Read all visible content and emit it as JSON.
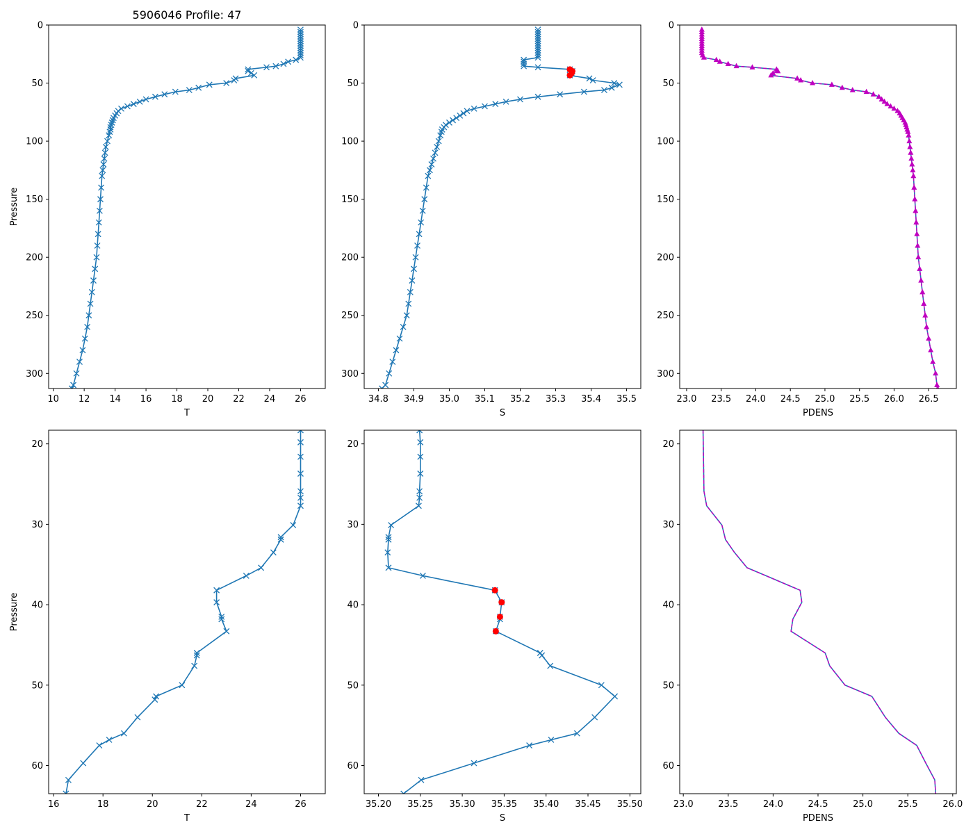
{
  "figure_title": "5906046 Profile: 47",
  "colors": {
    "line": "#1f77b4",
    "density": "#c000c0",
    "flag": "#ff0000"
  },
  "chart_data": [
    {
      "id": "top-temperature",
      "type": "line",
      "title": "5906046 Profile: 47",
      "xlabel": "T",
      "ylabel": "Pressure",
      "xlim": [
        9.7,
        27.6
      ],
      "ylim": [
        313,
        0
      ],
      "y_inverted": true,
      "xticks": [
        10,
        12,
        14,
        16,
        18,
        20,
        22,
        24,
        26
      ],
      "yticks": [
        0,
        50,
        100,
        150,
        200,
        250,
        300
      ],
      "marker": "x",
      "series": [
        {
          "name": "T",
          "pressure": [
            4,
            6,
            8,
            10,
            12,
            14,
            16,
            18,
            20,
            22,
            24,
            26,
            28,
            30,
            31.6,
            33.5,
            35.4,
            36.4,
            38.2,
            39.7,
            41.5,
            43.3,
            46,
            47.6,
            50,
            51.4,
            54,
            56,
            57.5,
            59.7,
            61.8,
            64,
            66,
            68,
            70,
            72,
            74,
            76,
            78,
            80,
            82,
            84,
            86,
            88,
            90,
            92,
            95,
            100,
            105,
            110,
            115,
            120,
            125,
            130,
            140,
            150,
            160,
            170,
            180,
            190,
            200,
            210,
            220,
            230,
            240,
            250,
            260,
            270,
            280,
            290,
            300,
            310,
            313
          ],
          "values": [
            26,
            26,
            26,
            26,
            26,
            26,
            26,
            26,
            26,
            26,
            26,
            26,
            26,
            25.7,
            25.2,
            24.9,
            24.4,
            23.8,
            22.6,
            22.6,
            22.8,
            23,
            21.8,
            21.7,
            21.2,
            20.1,
            19.4,
            18.8,
            17.9,
            17.2,
            16.6,
            16,
            15.6,
            15.2,
            14.8,
            14.4,
            14.2,
            14.1,
            14,
            13.9,
            13.85,
            13.8,
            13.75,
            13.7,
            13.7,
            13.65,
            13.6,
            13.5,
            13.4,
            13.35,
            13.3,
            13.25,
            13.2,
            13.15,
            13.1,
            13.05,
            13,
            12.95,
            12.9,
            12.85,
            12.8,
            12.7,
            12.6,
            12.5,
            12.4,
            12.3,
            12.2,
            12.05,
            11.9,
            11.7,
            11.5,
            11.3,
            11.2
          ]
        }
      ]
    },
    {
      "id": "top-salinity",
      "type": "line",
      "xlabel": "S",
      "ylabel": "",
      "xlim": [
        34.76,
        35.54
      ],
      "ylim": [
        313,
        0
      ],
      "y_inverted": true,
      "xticks": [
        34.8,
        34.9,
        35.0,
        35.1,
        35.2,
        35.3,
        35.4,
        35.5
      ],
      "yticks": [
        0,
        50,
        100,
        150,
        200,
        250,
        300
      ],
      "marker": "x",
      "series": [
        {
          "name": "S",
          "pressure": [
            4,
            6,
            8,
            10,
            12,
            14,
            16,
            18,
            20,
            22,
            24,
            26,
            28,
            30,
            31.6,
            33.5,
            35.4,
            36.4,
            38.2,
            39.7,
            41.5,
            43.3,
            46,
            47.6,
            50,
            51.4,
            54,
            56,
            57.5,
            59.7,
            61.8,
            64,
            66,
            68,
            70,
            72,
            74,
            76,
            78,
            80,
            82,
            84,
            86,
            88,
            90,
            92,
            95,
            100,
            105,
            110,
            115,
            120,
            125,
            130,
            140,
            150,
            160,
            170,
            180,
            190,
            200,
            210,
            220,
            230,
            240,
            250,
            260,
            270,
            280,
            290,
            300,
            310,
            313
          ],
          "values": [
            35.25,
            35.25,
            35.25,
            35.25,
            35.25,
            35.25,
            35.25,
            35.25,
            35.25,
            35.25,
            35.25,
            35.25,
            35.25,
            35.21,
            35.21,
            35.21,
            35.21,
            35.25,
            35.34,
            35.347,
            35.345,
            35.34,
            35.395,
            35.405,
            35.465,
            35.48,
            35.458,
            35.437,
            35.38,
            35.312,
            35.25,
            35.2,
            35.16,
            35.13,
            35.1,
            35.07,
            35.05,
            35.04,
            35.03,
            35.02,
            35.01,
            35.0,
            34.99,
            34.985,
            34.98,
            34.978,
            34.975,
            34.97,
            34.965,
            34.96,
            34.955,
            34.95,
            34.945,
            34.94,
            34.935,
            34.93,
            34.925,
            34.92,
            34.915,
            34.91,
            34.905,
            34.9,
            34.895,
            34.89,
            34.885,
            34.88,
            34.87,
            34.86,
            34.85,
            34.84,
            34.83,
            34.82,
            34.81
          ]
        }
      ],
      "flagged_points": {
        "pressure": [
          38.2,
          39.7,
          41.5,
          43.3
        ],
        "values": [
          35.34,
          35.347,
          35.345,
          35.34
        ]
      }
    },
    {
      "id": "top-density",
      "type": "line",
      "xlabel": "PDENS",
      "ylabel": "",
      "xlim": [
        22.9,
        26.9
      ],
      "ylim": [
        313,
        0
      ],
      "y_inverted": true,
      "xticks": [
        23.0,
        23.5,
        24.0,
        24.5,
        25.0,
        25.5,
        26.0,
        26.5
      ],
      "yticks": [
        0,
        50,
        100,
        150,
        200,
        250,
        300
      ],
      "marker": "triangle",
      "series": [
        {
          "name": "PDENS",
          "pressure": [
            4,
            6,
            8,
            10,
            12,
            14,
            16,
            18,
            20,
            22,
            24,
            26,
            28,
            30,
            31.6,
            33.5,
            35.4,
            36.4,
            38.2,
            39.7,
            41.5,
            43.3,
            46,
            47.6,
            50,
            51.4,
            54,
            56,
            57.5,
            59.7,
            61.8,
            64,
            66,
            68,
            70,
            72,
            74,
            76,
            78,
            80,
            82,
            84,
            86,
            88,
            90,
            92,
            95,
            100,
            105,
            110,
            115,
            120,
            125,
            130,
            140,
            150,
            160,
            170,
            180,
            190,
            200,
            210,
            220,
            230,
            240,
            250,
            260,
            270,
            280,
            290,
            300,
            310,
            313
          ],
          "values": [
            23.22,
            23.22,
            23.22,
            23.22,
            23.22,
            23.22,
            23.22,
            23.22,
            23.22,
            23.22,
            23.22,
            23.23,
            23.25,
            23.43,
            23.48,
            23.6,
            23.72,
            23.95,
            24.3,
            24.32,
            24.25,
            24.22,
            24.6,
            24.65,
            24.82,
            25.1,
            25.25,
            25.4,
            25.6,
            25.7,
            25.78,
            25.82,
            25.86,
            25.9,
            25.95,
            26.0,
            26.05,
            26.08,
            26.1,
            26.12,
            26.14,
            26.16,
            26.17,
            26.18,
            26.19,
            26.2,
            26.21,
            26.22,
            26.23,
            26.24,
            26.25,
            26.26,
            26.27,
            26.28,
            26.29,
            26.3,
            26.31,
            26.32,
            26.33,
            26.34,
            26.35,
            26.37,
            26.39,
            26.41,
            26.43,
            26.45,
            26.47,
            26.5,
            26.53,
            26.56,
            26.6,
            26.62,
            26.63
          ]
        }
      ]
    },
    {
      "id": "bottom-temperature",
      "type": "line",
      "xlabel": "T",
      "ylabel": "Pressure",
      "xlim": [
        15.8,
        27.0
      ],
      "ylim": [
        63.5,
        18.3
      ],
      "y_inverted": true,
      "xticks": [
        16,
        18,
        20,
        22,
        24,
        26
      ],
      "yticks": [
        20,
        30,
        40,
        50,
        60
      ],
      "marker": "x",
      "series": [
        {
          "name": "T",
          "pressure": [
            18.3,
            19.8,
            21.6,
            23.7,
            25.9,
            26.7,
            27.7,
            30.1,
            31.6,
            31.9,
            33.5,
            35.4,
            36.4,
            38.2,
            39.7,
            41.5,
            41.8,
            43.3,
            46,
            46.3,
            47.6,
            50,
            51.4,
            51.8,
            54,
            56,
            56.8,
            57.5,
            59.7,
            61.8,
            63.5
          ],
          "values": [
            26,
            26,
            26,
            26,
            26,
            26,
            26,
            25.7,
            25.2,
            25.2,
            24.9,
            24.4,
            23.8,
            22.6,
            22.6,
            22.8,
            22.8,
            23,
            21.8,
            21.8,
            21.7,
            21.2,
            20.15,
            20.1,
            19.4,
            18.85,
            18.25,
            17.85,
            17.2,
            16.6,
            16.5
          ]
        }
      ]
    },
    {
      "id": "bottom-salinity",
      "type": "line",
      "xlabel": "S",
      "ylabel": "",
      "xlim": [
        35.183,
        35.513
      ],
      "ylim": [
        63.5,
        18.3
      ],
      "y_inverted": true,
      "xticks": [
        35.2,
        35.25,
        35.3,
        35.35,
        35.4,
        35.45,
        35.5
      ],
      "yticks": [
        20,
        30,
        40,
        50,
        60
      ],
      "marker": "x",
      "series": [
        {
          "name": "S",
          "pressure": [
            18.3,
            19.8,
            21.6,
            23.7,
            25.9,
            26.7,
            27.7,
            30.1,
            31.6,
            31.9,
            33.5,
            35.4,
            36.4,
            38.2,
            39.7,
            41.5,
            41.8,
            43.3,
            46,
            46.3,
            47.6,
            50,
            51.4,
            54,
            56,
            56.8,
            57.5,
            59.7,
            61.8,
            63.5
          ],
          "values": [
            35.249,
            35.25,
            35.25,
            35.25,
            35.249,
            35.249,
            35.248,
            35.215,
            35.212,
            35.212,
            35.211,
            35.212,
            35.253,
            35.339,
            35.347,
            35.345,
            35.345,
            35.34,
            35.393,
            35.395,
            35.405,
            35.466,
            35.482,
            35.458,
            35.437,
            35.406,
            35.38,
            35.314,
            35.251,
            35.23
          ]
        }
      ],
      "flagged_points": {
        "pressure": [
          38.2,
          39.7,
          41.5,
          43.3
        ],
        "values": [
          35.339,
          35.347,
          35.345,
          35.34
        ]
      }
    },
    {
      "id": "bottom-density",
      "type": "line",
      "xlabel": "PDENS",
      "ylabel": "",
      "xlim": [
        22.96,
        26.04
      ],
      "ylim": [
        63.5,
        18.3
      ],
      "y_inverted": true,
      "xticks": [
        23.0,
        23.5,
        24.0,
        24.5,
        25.0,
        25.5,
        26.0
      ],
      "yticks": [
        20,
        30,
        40,
        50,
        60
      ],
      "marker": "none",
      "series": [
        {
          "name": "PDENS",
          "pressure": [
            18.3,
            25.9,
            27.7,
            30.1,
            31.9,
            33.5,
            35.4,
            36.4,
            38.2,
            39.7,
            41.8,
            43.3,
            46,
            47.6,
            50,
            51.4,
            54,
            56,
            57.5,
            59.7,
            61.8,
            63.5
          ],
          "values": [
            23.22,
            23.23,
            23.26,
            23.43,
            23.47,
            23.57,
            23.71,
            23.92,
            24.3,
            24.32,
            24.22,
            24.2,
            24.58,
            24.63,
            24.8,
            25.1,
            25.25,
            25.4,
            25.6,
            25.7,
            25.8,
            25.81
          ]
        }
      ]
    }
  ]
}
